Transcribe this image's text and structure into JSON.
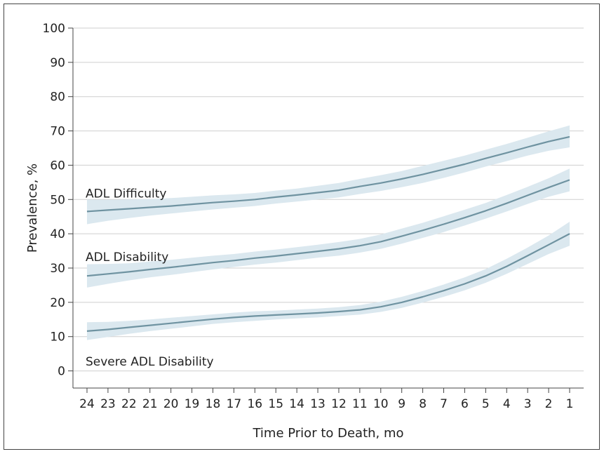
{
  "chart_data": {
    "type": "line",
    "xlabel": "Time Prior to Death, mo",
    "ylabel": "Prevalence, %",
    "ylim": [
      -5,
      100
    ],
    "yticks": [
      0,
      10,
      20,
      30,
      40,
      50,
      60,
      70,
      80,
      90,
      100
    ],
    "x": [
      24,
      23,
      22,
      21,
      20,
      19,
      18,
      17,
      16,
      15,
      14,
      13,
      12,
      11,
      10,
      9,
      8,
      7,
      6,
      5,
      4,
      3,
      2,
      1
    ],
    "grid": "horizontal",
    "colors": {
      "line": "#6f93a1",
      "band": "#dbe8ef",
      "grid": "#cfcfcf",
      "axis": "#444444"
    },
    "series": [
      {
        "name": "ADL Difficulty",
        "values": [
          46.5,
          46.9,
          47.3,
          47.7,
          48.1,
          48.6,
          49.1,
          49.5,
          50.0,
          50.7,
          51.3,
          52.0,
          52.7,
          53.8,
          54.8,
          56.0,
          57.3,
          58.8,
          60.3,
          62.0,
          63.6,
          65.3,
          66.9,
          68.3
        ],
        "ci_lower": [
          42.8,
          43.8,
          44.6,
          45.3,
          45.9,
          46.5,
          47.1,
          47.6,
          48.1,
          48.8,
          49.4,
          50.0,
          50.6,
          51.6,
          52.5,
          53.6,
          54.8,
          56.3,
          57.9,
          59.6,
          61.2,
          62.8,
          64.2,
          65.2
        ],
        "ci_upper": [
          50.0,
          49.9,
          50.0,
          50.1,
          50.4,
          50.8,
          51.2,
          51.5,
          51.9,
          52.6,
          53.2,
          54.0,
          54.8,
          56.0,
          57.1,
          58.3,
          59.8,
          61.3,
          62.8,
          64.5,
          66.2,
          68.0,
          69.9,
          71.6
        ],
        "label": "ADL Difficulty"
      },
      {
        "name": "ADL Disability",
        "values": [
          27.7,
          28.3,
          28.9,
          29.6,
          30.2,
          30.9,
          31.6,
          32.2,
          32.9,
          33.5,
          34.2,
          34.9,
          35.6,
          36.5,
          37.7,
          39.3,
          41.0,
          42.8,
          44.7,
          46.7,
          48.9,
          51.2,
          53.5,
          55.7
        ],
        "ci_lower": [
          24.3,
          25.4,
          26.4,
          27.3,
          28.0,
          28.8,
          29.6,
          30.3,
          31.0,
          31.6,
          32.3,
          33.0,
          33.6,
          34.5,
          35.6,
          37.1,
          38.8,
          40.5,
          42.4,
          44.4,
          46.5,
          48.7,
          50.8,
          52.4
        ],
        "ci_upper": [
          31.1,
          31.2,
          31.4,
          31.9,
          32.4,
          33.0,
          33.6,
          34.1,
          34.8,
          35.4,
          36.1,
          36.8,
          37.6,
          38.5,
          39.8,
          41.5,
          43.2,
          45.1,
          47.0,
          49.0,
          51.3,
          53.7,
          56.2,
          59.0
        ],
        "label": "ADL Disability"
      },
      {
        "name": "Severe ADL Disability",
        "values": [
          11.6,
          12.1,
          12.7,
          13.3,
          13.9,
          14.5,
          15.1,
          15.6,
          16.0,
          16.3,
          16.6,
          16.9,
          17.3,
          17.8,
          18.7,
          20.0,
          21.6,
          23.4,
          25.4,
          27.7,
          30.5,
          33.6,
          36.8,
          40.0
        ],
        "ci_lower": [
          9.0,
          9.9,
          10.8,
          11.6,
          12.3,
          13.0,
          13.7,
          14.2,
          14.6,
          15.0,
          15.3,
          15.6,
          16.0,
          16.4,
          17.2,
          18.4,
          19.9,
          21.6,
          23.5,
          25.7,
          28.3,
          31.2,
          34.1,
          36.5
        ],
        "ci_upper": [
          14.2,
          14.3,
          14.6,
          15.0,
          15.5,
          16.0,
          16.5,
          17.0,
          17.4,
          17.6,
          17.9,
          18.2,
          18.6,
          19.2,
          20.2,
          21.6,
          23.3,
          25.2,
          27.3,
          29.7,
          32.7,
          36.0,
          39.5,
          43.5
        ],
        "label": "Severe ADL Disability"
      }
    ]
  }
}
